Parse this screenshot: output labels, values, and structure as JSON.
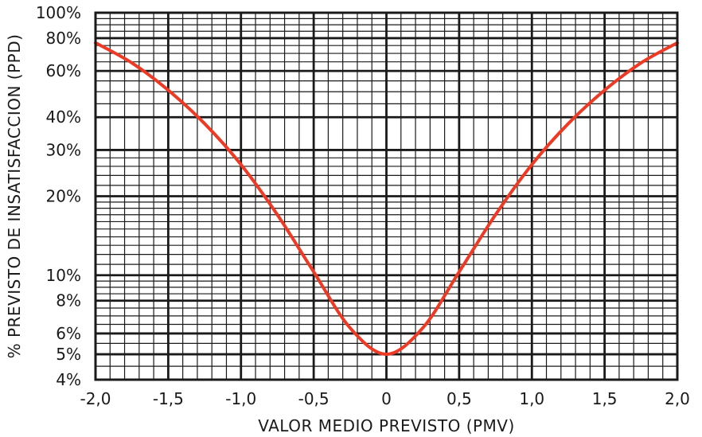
{
  "chart_data": {
    "type": "line",
    "title": "",
    "xlabel": "VALOR MEDIO PREVISTO (PMV)",
    "ylabel": "% PREVISTO DE INSATISFACCION (PPD)",
    "x_scale": "linear",
    "y_scale": "log",
    "xlim": [
      -2.0,
      2.0
    ],
    "ylim": [
      4,
      100
    ],
    "grid": true,
    "legend": "none",
    "x_ticks": [
      -2.0,
      -1.5,
      -1.0,
      -0.5,
      0,
      0.5,
      1.0,
      1.5,
      2.0
    ],
    "x_tick_labels": [
      "-2,0",
      "-1,5",
      "-1,0",
      "-0,5",
      "0",
      "0,5",
      "1,0",
      "1,5",
      "2,0"
    ],
    "y_ticks": [
      4,
      5,
      6,
      8,
      10,
      20,
      30,
      40,
      60,
      80,
      100
    ],
    "y_tick_labels": [
      "4%",
      "5%",
      "6%",
      "8%",
      "10%",
      "20%",
      "30%",
      "40%",
      "60%",
      "80%",
      "100%"
    ],
    "series": [
      {
        "color": "#ee3a24",
        "x": [
          -2.0,
          -1.75,
          -1.5,
          -1.25,
          -1.0,
          -0.75,
          -0.5,
          -0.25,
          0,
          0.25,
          0.5,
          0.75,
          1.0,
          1.25,
          1.5,
          1.75,
          2.0
        ],
        "y": [
          76.8,
          64.4,
          50.7,
          37.8,
          26.4,
          17.0,
          10.3,
          6.3,
          5.0,
          6.3,
          10.3,
          17.0,
          26.4,
          37.8,
          50.7,
          64.4,
          76.8
        ]
      }
    ]
  }
}
